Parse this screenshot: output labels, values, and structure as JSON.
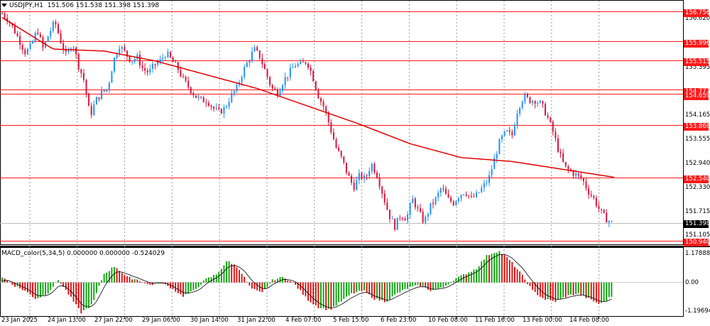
{
  "header": {
    "symbol_label": "USDJPY,H1",
    "ohlc": "151.506 151.538 151.398 151.398"
  },
  "macd": {
    "label": "MACD_color(5,34,5) 0.000000 0.000000 -0.524029",
    "ticks": [
      "1.178881",
      "0.00",
      "-1.196945"
    ]
  },
  "price_axis": {
    "ticks": [
      "156.620",
      "155.395",
      "154.165",
      "153.555",
      "152.940",
      "152.330",
      "151.715",
      "151.105"
    ],
    "current_price": "151.398"
  },
  "levels": [
    "156.756",
    "155.996",
    "155.515",
    "154.772",
    "154.659",
    "153.868",
    "152.540",
    "150.940"
  ],
  "time_axis": [
    "23 Jan 2025",
    "24 Jan 13:00",
    "27 Jan 22:00",
    "29 Jan 06:00",
    "30 Jan 14:00",
    "31 Jan 22:00",
    "4 Feb 07:00",
    "5 Feb 15:00",
    "6 Feb 23:00",
    "10 Feb 08:00",
    "11 Feb 16:00",
    "13 Feb 00:00",
    "14 Feb 08:00"
  ],
  "colors": {
    "bull": "#1e90ff",
    "bear": "#dc143c",
    "level": "#ff1a1a",
    "ma": "#e00000",
    "grid": "#9a9a9a",
    "hist_up": "#00a000",
    "hist_down": "#e00000"
  },
  "chart_data": {
    "type": "candlestick",
    "symbol": "USDJPY",
    "timeframe": "H1",
    "ylim": [
      150.85,
      156.9
    ],
    "price_path": [
      156.7,
      156.55,
      156.3,
      156.0,
      155.7,
      155.9,
      156.3,
      155.8,
      156.2,
      156.5,
      156.0,
      155.6,
      156.0,
      155.4,
      155.0,
      154.1,
      154.5,
      154.7,
      154.8,
      155.5,
      155.9,
      155.7,
      155.5,
      155.6,
      155.3,
      155.2,
      155.4,
      155.5,
      155.7,
      155.5,
      155.3,
      155.0,
      154.8,
      154.6,
      154.5,
      154.5,
      154.3,
      154.2,
      154.3,
      154.6,
      154.8,
      155.2,
      155.5,
      155.8,
      155.6,
      155.2,
      154.8,
      154.7,
      155.0,
      155.2,
      155.4,
      155.4,
      155.5,
      155.1,
      154.6,
      154.3,
      153.8,
      153.3,
      153.0,
      152.6,
      152.3,
      152.6,
      152.5,
      152.9,
      152.6,
      152.1,
      151.6,
      151.3,
      151.6,
      151.5,
      152.0,
      151.7,
      151.4,
      151.8,
      152.0,
      152.3,
      152.0,
      151.9,
      152.1,
      152.2,
      152.0,
      152.1,
      152.3,
      152.5,
      153.0,
      153.5,
      153.7,
      153.6,
      154.3,
      154.6,
      154.5,
      154.5,
      154.4,
      154.1,
      153.7,
      153.2,
      152.8,
      152.7,
      152.6,
      152.5,
      152.2,
      152.0,
      151.7,
      151.5,
      151.4
    ],
    "ma_path": [
      156.6,
      155.8,
      155.75,
      155.5,
      155.15,
      154.8,
      154.35,
      153.9,
      153.4,
      153.05,
      152.95,
      152.75,
      152.55
    ],
    "levels": [
      156.756,
      155.996,
      155.515,
      154.772,
      154.659,
      153.868,
      152.54,
      150.94
    ],
    "current": 151.398,
    "macd": {
      "name": "MACD_color(5,34,5)",
      "values": [
        0.0,
        0.0,
        -0.524029
      ],
      "ylim": [
        -1.196945,
        1.178881
      ],
      "hist_path": [
        0.2,
        -0.1,
        -0.3,
        -0.6,
        -0.4,
        0.1,
        -0.5,
        -1.1,
        -0.8,
        0.3,
        0.6,
        0.2,
        0.1,
        -0.1,
        0.0,
        -0.2,
        -0.5,
        -0.3,
        0.1,
        0.3,
        0.8,
        0.5,
        -0.2,
        -0.4,
        0.1,
        0.2,
        -0.1,
        -0.6,
        -0.9,
        -1.0,
        -0.7,
        -0.4,
        -0.3,
        -0.6,
        -0.7,
        -0.4,
        -0.2,
        -0.1,
        -0.3,
        -0.2,
        0.1,
        0.3,
        0.5,
        1.0,
        1.15,
        0.8,
        0.3,
        -0.3,
        -0.6,
        -0.7,
        -0.5,
        -0.4,
        -0.6,
        -0.8,
        -0.5
      ]
    }
  }
}
